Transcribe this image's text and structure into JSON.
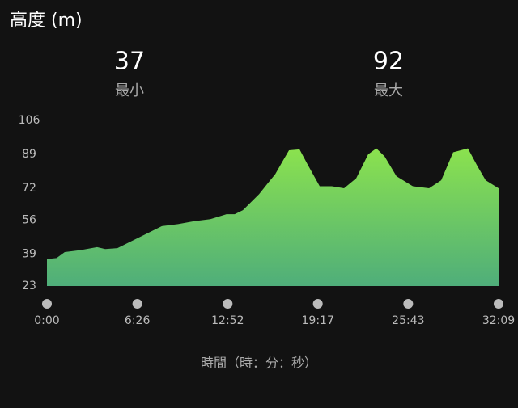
{
  "chart_data": {
    "type": "area",
    "title": "高度 (m)",
    "stats": [
      {
        "value": 37,
        "label": "最小"
      },
      {
        "value": 92,
        "label": "最大"
      }
    ],
    "x_label": "時間（時：分：秒）",
    "x": [
      0,
      41,
      76,
      111,
      145,
      214,
      249,
      301,
      353,
      422,
      491,
      560,
      629,
      698,
      767,
      802,
      837,
      906,
      940,
      975,
      1009,
      1034,
      1079,
      1113,
      1165,
      1217,
      1269,
      1321,
      1372,
      1407,
      1442,
      1493,
      1563,
      1632,
      1684,
      1735,
      1798,
      1839,
      1874,
      1929
    ],
    "values": [
      36.5,
      37,
      40,
      40.5,
      41,
      42.5,
      41.5,
      42,
      45,
      49,
      53,
      54,
      55.5,
      56.5,
      59,
      59,
      61,
      69,
      74,
      79,
      86,
      91,
      91.5,
      84,
      73,
      73,
      72,
      77,
      89,
      92,
      88,
      78,
      73,
      72,
      76,
      90,
      92,
      83,
      76,
      72
    ],
    "color_top": "#8be24e",
    "color_bottom": "#4fae7a",
    "xlim": [
      0,
      1929
    ],
    "ylim": [
      23,
      106
    ],
    "yticks": [
      106,
      89,
      72,
      56,
      39,
      23
    ],
    "xticks": [
      {
        "value": 0,
        "label": "0:00"
      },
      {
        "value": 386,
        "label": "6:26"
      },
      {
        "value": 772,
        "label": "12:52"
      },
      {
        "value": 1157,
        "label": "19:17"
      },
      {
        "value": 1543,
        "label": "25:43"
      },
      {
        "value": 1929,
        "label": "32:09"
      }
    ]
  }
}
